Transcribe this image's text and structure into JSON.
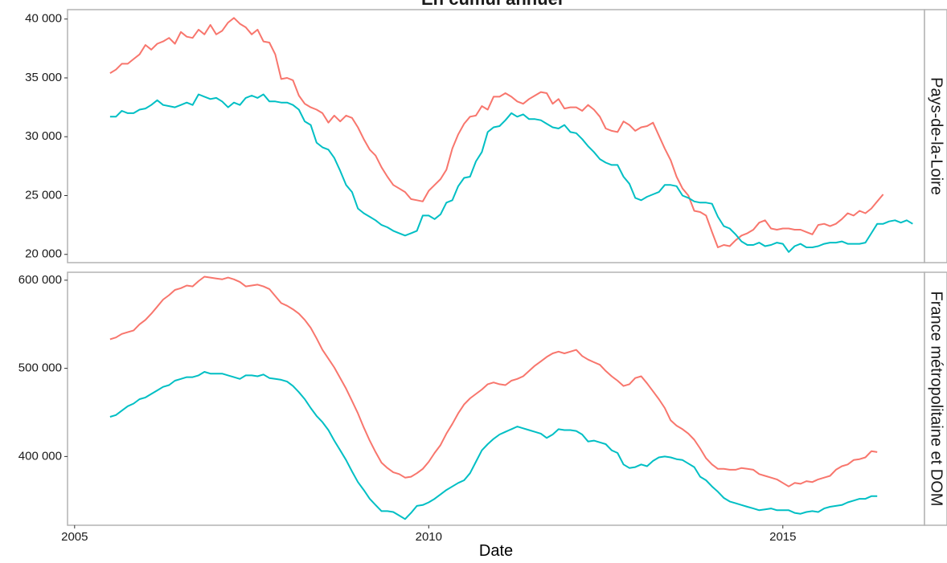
{
  "chart_data": {
    "type": "line",
    "title": "En cumul annuel",
    "xlabel": "Date",
    "x_ticks": [
      2005,
      2010,
      2015
    ],
    "xlim": [
      2004.9,
      2017.0
    ],
    "series_colors": [
      "#F8766D",
      "#00BFC4"
    ],
    "panels": [
      {
        "strip_label": "Pays-de-la-Loire",
        "ylim": [
          19300,
          40800
        ],
        "y_ticks": [
          20000,
          25000,
          30000,
          35000,
          40000
        ],
        "y_tick_labels": [
          "20 000",
          "25 000",
          "30 000",
          "35 000",
          "40 000"
        ],
        "series": [
          {
            "x_start": 2005.5,
            "x_step": 0.08333,
            "values": [
              35400,
              35700,
              36200,
              36200,
              36600,
              37000,
              37800,
              37400,
              37900,
              38100,
              38400,
              37900,
              38900,
              38500,
              38400,
              39100,
              38700,
              39500,
              38700,
              39000,
              39700,
              40100,
              39600,
              39300,
              38700,
              39100,
              38100,
              38000,
              37000,
              34900,
              35000,
              34800,
              33500,
              32800,
              32500,
              32300,
              32000,
              31200,
              31800,
              31300,
              31800,
              31600,
              30800,
              29800,
              28900,
              28400,
              27400,
              26600,
              25900,
              25600,
              25300,
              24700,
              24600,
              24500,
              25400,
              25900,
              26400,
              27200,
              29000,
              30200,
              31100,
              31700,
              31800,
              32600,
              32300,
              33400,
              33400,
              33700,
              33400,
              33000,
              32800,
              33200,
              33500,
              33800,
              33700,
              32800,
              33200,
              32400,
              32500,
              32500,
              32200,
              32700,
              32300,
              31700,
              30700,
              30500,
              30400,
              31300,
              31000,
              30500,
              30800,
              30900,
              31200,
              30100,
              29000,
              28000,
              26600,
              25600,
              25000,
              23700,
              23600,
              23300,
              21900,
              20600,
              20800,
              20700,
              21200,
              21600,
              21800,
              22100,
              22700,
              22900,
              22200,
              22100,
              22200,
              22200,
              22100,
              22100,
              21900,
              21700,
              22500,
              22600,
              22400,
              22600,
              23000,
              23500,
              23300,
              23700,
              23500,
              23900,
              24500,
              25100
            ]
          },
          {
            "x_start": 2005.5,
            "x_step": 0.08333,
            "values": [
              31700,
              31700,
              32200,
              32000,
              32000,
              32300,
              32400,
              32700,
              33100,
              32700,
              32600,
              32500,
              32700,
              32900,
              32700,
              33600,
              33400,
              33200,
              33300,
              33000,
              32500,
              32900,
              32700,
              33300,
              33500,
              33300,
              33600,
              33000,
              33000,
              32900,
              32900,
              32700,
              32300,
              31300,
              31000,
              29500,
              29100,
              28900,
              28200,
              27100,
              25900,
              25300,
              23900,
              23500,
              23200,
              22900,
              22500,
              22300,
              22000,
              21800,
              21600,
              21800,
              22000,
              23300,
              23300,
              23000,
              23400,
              24400,
              24600,
              25800,
              26500,
              26600,
              27900,
              28700,
              30400,
              30800,
              30900,
              31400,
              32000,
              31700,
              31900,
              31500,
              31500,
              31400,
              31100,
              30800,
              30700,
              31000,
              30400,
              30300,
              29800,
              29200,
              28700,
              28100,
              27800,
              27600,
              27600,
              26600,
              26000,
              24800,
              24600,
              24900,
              25100,
              25300,
              25900,
              25900,
              25800,
              25000,
              24800,
              24500,
              24400,
              24400,
              24300,
              23200,
              22400,
              22200,
              21700,
              21100,
              20800,
              20800,
              21000,
              20700,
              20800,
              21000,
              20900,
              20200,
              20700,
              20900,
              20600,
              20600,
              20700,
              20900,
              21000,
              21000,
              21100,
              20900,
              20900,
              20900,
              21000,
              21800,
              22600,
              22600,
              22800,
              22900,
              22700,
              22900,
              22600
            ]
          }
        ]
      },
      {
        "strip_label": "France métropolitaine et DOM",
        "ylim": [
          322000,
          609000
        ],
        "y_ticks": [
          400000,
          500000,
          600000
        ],
        "y_tick_labels": [
          "400 000",
          "500 000",
          "600 000"
        ],
        "series": [
          {
            "x_start": 2005.5,
            "x_step": 0.08333,
            "values": [
              533000,
              535000,
              539000,
              541000,
              543000,
              550000,
              555000,
              562000,
              570000,
              578000,
              583000,
              589000,
              591000,
              594000,
              593000,
              599000,
              604000,
              603000,
              602000,
              601000,
              603000,
              601000,
              598000,
              593000,
              594000,
              595000,
              593000,
              590000,
              582000,
              574000,
              571000,
              567000,
              562000,
              555000,
              546000,
              534000,
              521000,
              511000,
              501000,
              489000,
              477000,
              463000,
              449000,
              433000,
              418000,
              405000,
              393000,
              387000,
              382000,
              380000,
              376000,
              377000,
              381000,
              386000,
              394000,
              404000,
              413000,
              426000,
              437000,
              449000,
              459000,
              466000,
              471000,
              476000,
              482000,
              484000,
              482000,
              481000,
              486000,
              488000,
              491000,
              497000,
              503000,
              508000,
              513000,
              517000,
              519000,
              517000,
              519000,
              521000,
              514000,
              510000,
              507000,
              504000,
              497000,
              491000,
              486000,
              480000,
              482000,
              489000,
              491000,
              483000,
              474000,
              465000,
              455000,
              441000,
              435000,
              431000,
              426000,
              419000,
              409000,
              398000,
              391000,
              386000,
              386000,
              385000,
              385000,
              387000,
              386000,
              385000,
              380000,
              378000,
              376000,
              374000,
              370000,
              366000,
              370000,
              369000,
              372000,
              371000,
              374000,
              376000,
              378000,
              385000,
              389000,
              391000,
              396000,
              397000,
              399000,
              406000,
              405000
            ]
          },
          {
            "x_start": 2005.5,
            "x_step": 0.08333,
            "values": [
              445000,
              447000,
              452000,
              457000,
              460000,
              465000,
              467000,
              471000,
              475000,
              479000,
              481000,
              486000,
              488000,
              490000,
              490000,
              492000,
              496000,
              494000,
              494000,
              494000,
              492000,
              490000,
              488000,
              492000,
              492000,
              491000,
              493000,
              489000,
              488000,
              487000,
              485000,
              480000,
              473000,
              465000,
              455000,
              446000,
              439000,
              430000,
              418000,
              407000,
              396000,
              383000,
              371000,
              362000,
              352000,
              345000,
              338000,
              338000,
              337000,
              333000,
              329000,
              336000,
              344000,
              345000,
              348000,
              352000,
              357000,
              362000,
              366000,
              370000,
              373000,
              381000,
              394000,
              407000,
              414000,
              420000,
              425000,
              428000,
              431000,
              434000,
              432000,
              430000,
              428000,
              426000,
              421000,
              425000,
              431000,
              430000,
              430000,
              429000,
              425000,
              417000,
              418000,
              416000,
              414000,
              407000,
              404000,
              391000,
              387000,
              388000,
              391000,
              389000,
              395000,
              399000,
              400000,
              399000,
              397000,
              396000,
              392000,
              388000,
              377000,
              373000,
              366000,
              360000,
              353000,
              349000,
              347000,
              345000,
              343000,
              341000,
              339000,
              340000,
              341000,
              339000,
              339000,
              339000,
              336000,
              335000,
              337000,
              338000,
              337000,
              341000,
              343000,
              344000,
              345000,
              348000,
              350000,
              352000,
              352000,
              355000,
              355000
            ]
          }
        ]
      }
    ]
  }
}
